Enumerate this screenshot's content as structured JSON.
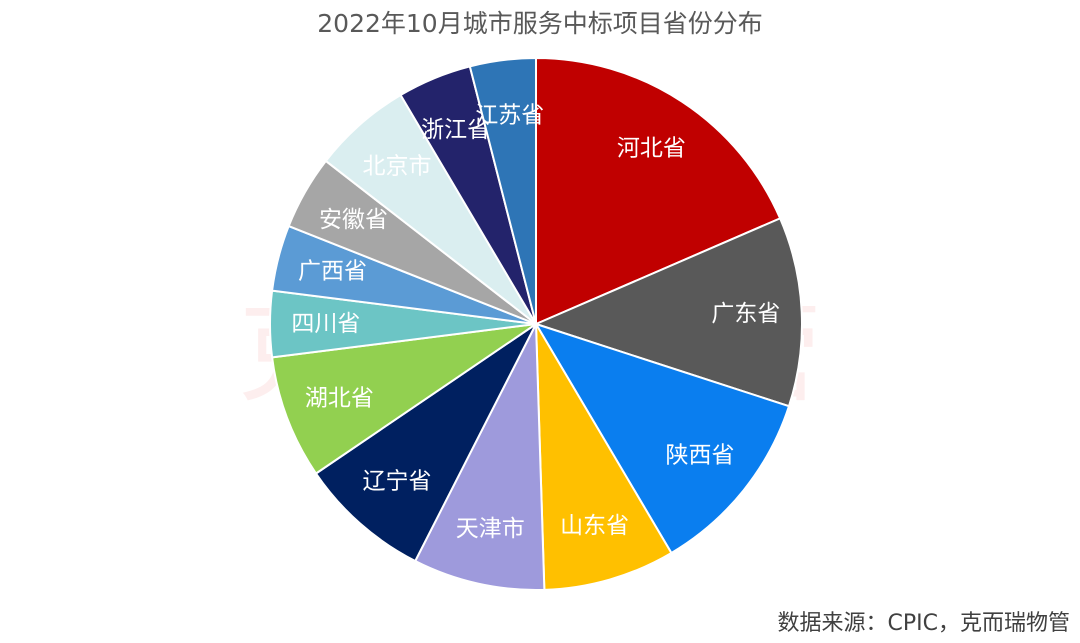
{
  "watermark_text": "克而瑞物管",
  "source_note": "数据来源：CPIC，克而瑞物管",
  "chart_data": {
    "type": "pie",
    "title": "2022年10月城市服务中标项目省份分布",
    "start_angle_deg": 0,
    "direction": "clockwise",
    "legend": "none",
    "slices": [
      {
        "label": "河北省",
        "value": 18.5,
        "color": "#C00000"
      },
      {
        "label": "广东省",
        "value": 11.5,
        "color": "#595959"
      },
      {
        "label": "陕西省",
        "value": 11.5,
        "color": "#0A7EEF"
      },
      {
        "label": "山东省",
        "value": 8.0,
        "color": "#FFC000"
      },
      {
        "label": "天津市",
        "value": 8.0,
        "color": "#9E9ADC"
      },
      {
        "label": "辽宁省",
        "value": 8.0,
        "color": "#002060"
      },
      {
        "label": "湖北省",
        "value": 7.5,
        "color": "#92D050"
      },
      {
        "label": "四川省",
        "value": 4.0,
        "color": "#6CC5C5"
      },
      {
        "label": "广西省",
        "value": 4.0,
        "color": "#5B9BD5"
      },
      {
        "label": "安徽省",
        "value": 4.5,
        "color": "#A6A6A6"
      },
      {
        "label": "北京市",
        "value": 6.0,
        "color": "#DAEEF0"
      },
      {
        "label": "浙江省",
        "value": 4.5,
        "color": "#23236B"
      },
      {
        "label": "江苏省",
        "value": 4.0,
        "color": "#2E75B6"
      }
    ]
  }
}
